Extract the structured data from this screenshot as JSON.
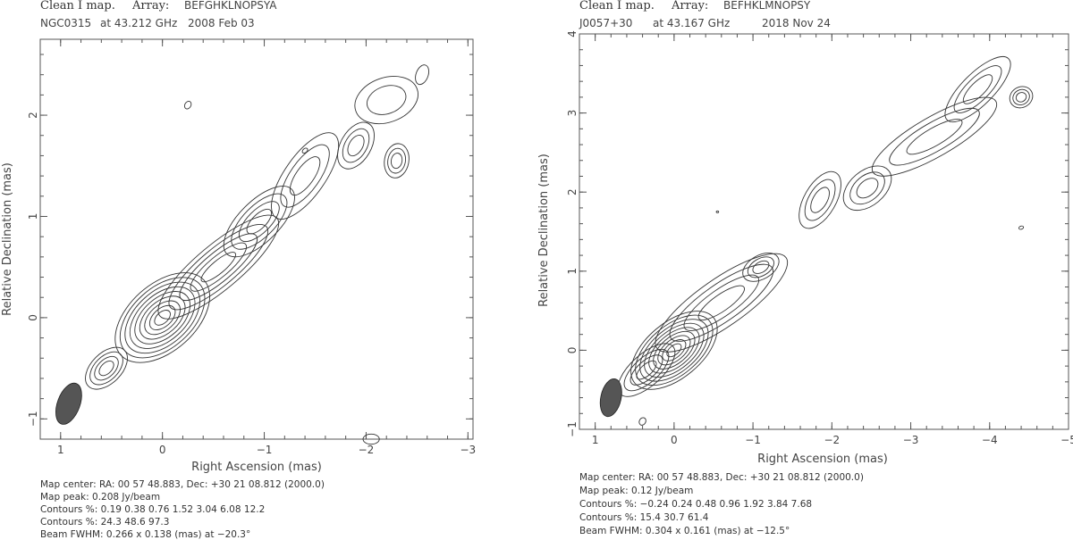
{
  "chart_data": [
    {
      "type": "contour",
      "title": "Clean I map.",
      "array_label": "Array:",
      "array": "BEFGHKLNOPSYA",
      "source": "NGC0315",
      "freq": "at 43.212 GHz",
      "date": "2008 Feb 03",
      "xlabel": "Right Ascension  (mas)",
      "ylabel": "Relative Declination  (mas)",
      "xlim": [
        1.2,
        -3.05
      ],
      "ylim": [
        -1.2,
        2.75
      ],
      "xticks": [
        1,
        0,
        -1,
        -2,
        -3
      ],
      "xtick_labels": [
        "1",
        "0",
        "−1",
        "−2",
        "−3"
      ],
      "yticks": [
        -1,
        0,
        1,
        2
      ],
      "ytick_labels": [
        "−1",
        "0",
        "1",
        "2"
      ],
      "beam": {
        "x": 0.92,
        "y": -0.85,
        "fwhm_major": 0.266,
        "fwhm_minor": 0.138,
        "pa": -20.3
      },
      "components": [
        {
          "x": 0.0,
          "y": 0.0,
          "major": 0.55,
          "minor": 0.33,
          "angle": 42,
          "levels": 9
        },
        {
          "x": -0.55,
          "y": 0.5,
          "major": 0.75,
          "minor": 0.22,
          "angle": 40,
          "levels": 5
        },
        {
          "x": -0.95,
          "y": 0.95,
          "major": 0.45,
          "minor": 0.2,
          "angle": 45,
          "levels": 4
        },
        {
          "x": -1.4,
          "y": 1.4,
          "major": 0.5,
          "minor": 0.2,
          "angle": 55,
          "levels": 3
        },
        {
          "x": -1.9,
          "y": 1.7,
          "major": 0.25,
          "minor": 0.15,
          "angle": 60,
          "levels": 3
        },
        {
          "x": -2.3,
          "y": 1.55,
          "major": 0.17,
          "minor": 0.12,
          "angle": 80,
          "levels": 3
        },
        {
          "x": -2.2,
          "y": 2.15,
          "major": 0.32,
          "minor": 0.22,
          "angle": 20,
          "levels": 2
        },
        {
          "x": -2.55,
          "y": 2.4,
          "major": 0.1,
          "minor": 0.06,
          "angle": 70,
          "levels": 1
        },
        {
          "x": -0.25,
          "y": 2.1,
          "major": 0.04,
          "minor": 0.03,
          "angle": 60,
          "levels": 1
        },
        {
          "x": -1.4,
          "y": 1.65,
          "major": 0.03,
          "minor": 0.02,
          "angle": 40,
          "levels": 1
        },
        {
          "x": -2.05,
          "y": -1.2,
          "major": 0.08,
          "minor": 0.05,
          "angle": 0,
          "levels": 1
        },
        {
          "x": 0.55,
          "y": -0.5,
          "major": 0.25,
          "minor": 0.15,
          "angle": 45,
          "levels": 4
        }
      ],
      "footer": [
        "Map center:  RA: 00 57 48.883,  Dec: +30 21 08.812 (2000.0)",
        "Map peak: 0.208 Jy/beam",
        "Contours %: 0.19 0.38 0.76 1.52 3.04 6.08 12.2",
        "Contours %: 24.3 48.6 97.3",
        "Beam FWHM: 0.266 x 0.138 (mas) at −20.3°"
      ]
    },
    {
      "type": "contour",
      "title": "Clean I map.",
      "array_label": "Array:",
      "array": "BEFHKLMNOPSY",
      "source": "J0057+30",
      "freq": "at 43.167 GHz",
      "date": "2018 Nov 24",
      "xlabel": "Right Ascension  (mas)",
      "ylabel": "Relative Declination  (mas)",
      "xlim": [
        1.2,
        -5.0
      ],
      "ylim": [
        -1.0,
        4.0
      ],
      "xticks": [
        1,
        0,
        -1,
        -2,
        -3,
        -4,
        -5
      ],
      "xtick_labels": [
        "1",
        "0",
        "−1",
        "−2",
        "−3",
        "−4",
        "−5"
      ],
      "yticks": [
        -1,
        0,
        1,
        2,
        3,
        4
      ],
      "ytick_labels": [
        "−1",
        "0",
        "1",
        "2",
        "3",
        "4"
      ],
      "beam": {
        "x": 0.8,
        "y": -0.6,
        "fwhm_major": 0.304,
        "fwhm_minor": 0.161,
        "pa": -12.5
      },
      "components": [
        {
          "x": 0.0,
          "y": 0.0,
          "major": 0.65,
          "minor": 0.35,
          "angle": 40,
          "levels": 9
        },
        {
          "x": -0.6,
          "y": 0.6,
          "major": 1.0,
          "minor": 0.3,
          "angle": 35,
          "levels": 4
        },
        {
          "x": -1.1,
          "y": 1.05,
          "major": 0.25,
          "minor": 0.15,
          "angle": 30,
          "levels": 3
        },
        {
          "x": -1.85,
          "y": 1.9,
          "major": 0.4,
          "minor": 0.2,
          "angle": 60,
          "levels": 3
        },
        {
          "x": -2.45,
          "y": 2.05,
          "major": 0.35,
          "minor": 0.22,
          "angle": 40,
          "levels": 3
        },
        {
          "x": -3.3,
          "y": 2.7,
          "major": 0.9,
          "minor": 0.25,
          "angle": 30,
          "levels": 3
        },
        {
          "x": -3.85,
          "y": 3.3,
          "major": 0.55,
          "minor": 0.2,
          "angle": 45,
          "levels": 3
        },
        {
          "x": -4.4,
          "y": 3.2,
          "major": 0.15,
          "minor": 0.13,
          "angle": 30,
          "levels": 3
        },
        {
          "x": 0.4,
          "y": -0.9,
          "major": 0.05,
          "minor": 0.04,
          "angle": 60,
          "levels": 1
        },
        {
          "x": -0.55,
          "y": 1.75,
          "major": 0.015,
          "minor": 0.01,
          "angle": 0,
          "levels": 1
        },
        {
          "x": -4.4,
          "y": 1.55,
          "major": 0.03,
          "minor": 0.02,
          "angle": 20,
          "levels": 1
        },
        {
          "x": 0.35,
          "y": -0.25,
          "major": 0.45,
          "minor": 0.2,
          "angle": 42,
          "levels": 4
        }
      ],
      "footer": [
        "Map center:  RA: 00 57 48.883,  Dec: +30 21 08.812 (2000.0)",
        "Map peak: 0.12 Jy/beam",
        "Contours %: −0.24 0.24 0.48 0.96 1.92 3.84 7.68",
        "Contours %: 15.4 30.7 61.4",
        "Beam FWHM: 0.304 x 0.161 (mas) at −12.5°"
      ]
    }
  ]
}
